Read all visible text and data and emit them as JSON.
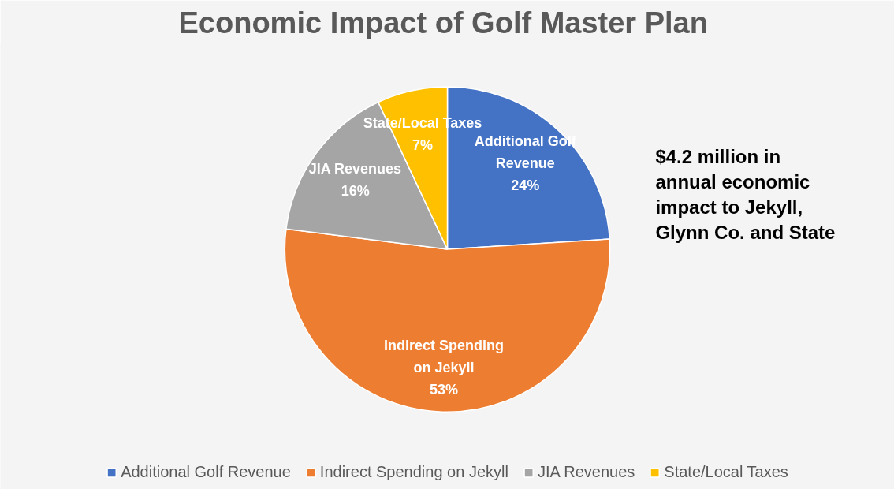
{
  "chart_data": {
    "type": "pie",
    "title": "Economic Impact of Golf  Master Plan",
    "categories": [
      "Additional Golf Revenue",
      "Indirect Spending on Jekyll",
      "JIA Revenues",
      "State/Local Taxes"
    ],
    "values": [
      24,
      53,
      16,
      7
    ],
    "colors": [
      "#4472c4",
      "#ed7d31",
      "#a5a5a5",
      "#ffc000"
    ],
    "value_labels": [
      "24%",
      "53%",
      "16%",
      "7%"
    ],
    "legend": "bottom",
    "annotations": [
      "$4.2 million in\nannual economic\nimpact to Jekyll,\nGlynn Co. and State"
    ]
  }
}
